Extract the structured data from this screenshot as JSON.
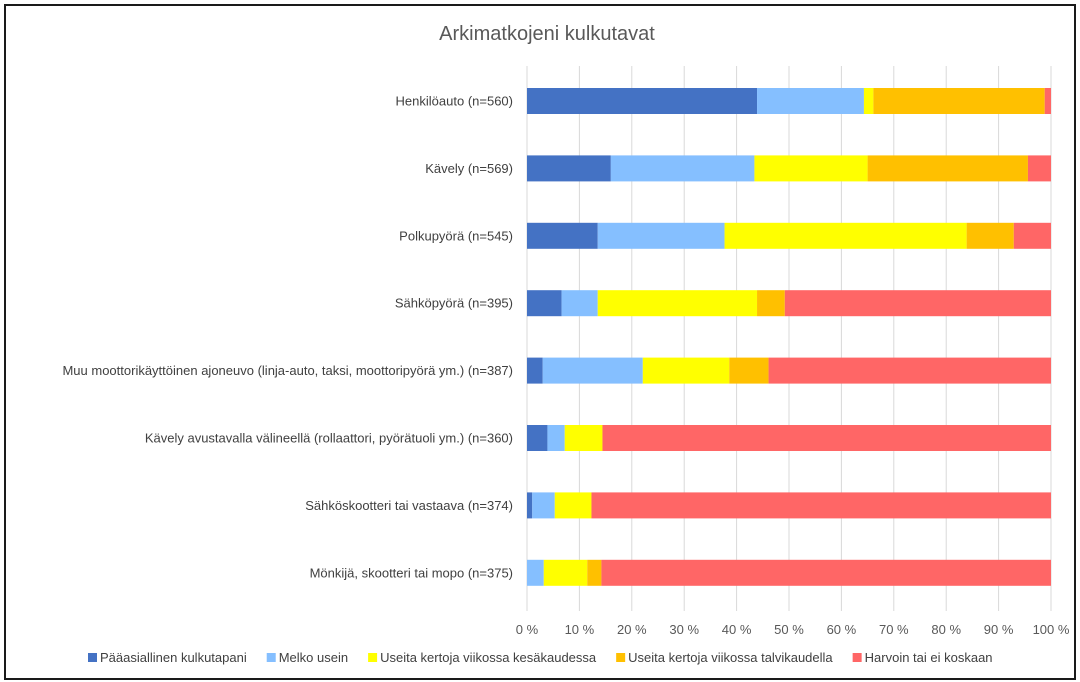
{
  "chart_data": {
    "type": "bar",
    "orientation": "horizontal",
    "stacked": true,
    "title": "Arkimatkojeni kulkutavat",
    "xlabel": "",
    "ylabel": "",
    "xlim": [
      0,
      100
    ],
    "x_ticks": [
      "0 %",
      "10 %",
      "20 %",
      "30 %",
      "40 %",
      "50 %",
      "60 %",
      "70 %",
      "80 %",
      "90 %",
      "100 %"
    ],
    "grid": true,
    "legend_position": "bottom",
    "categories": [
      "Henkilöauto (n=560)",
      "Kävely (n=569)",
      "Polkupyörä (n=545)",
      "Sähköpyörä (n=395)",
      "Muu moottorikäyttöinen ajoneuvo (linja-auto, taksi, moottoripyörä ym.) (n=387)",
      "Kävely avustavalla välineellä (rollaattori, pyörätuoli ym.) (n=360)",
      "Sähköskootteri tai vastaava (n=374)",
      "Mönkijä, skootteri tai mopo (n=375)"
    ],
    "series": [
      {
        "name": "Pääasiallinen kulkutapani",
        "color": "#4472C4",
        "values": [
          43.9,
          16.0,
          13.5,
          6.6,
          3.0,
          3.9,
          1.0,
          0.0
        ]
      },
      {
        "name": "Melko usein",
        "color": "#85BFFF",
        "values": [
          20.4,
          27.4,
          24.2,
          6.9,
          19.1,
          3.3,
          4.3,
          3.2
        ]
      },
      {
        "name": "Useita kertoja viikossa kesäkaudessa",
        "color": "#FFFF00",
        "values": [
          1.8,
          21.6,
          46.2,
          30.4,
          16.5,
          7.2,
          7.0,
          8.3
        ]
      },
      {
        "name": "Useita kertoja viikossa talvikaudella",
        "color": "#FFC000",
        "values": [
          32.7,
          30.6,
          9.0,
          5.3,
          7.5,
          0.0,
          0.0,
          2.7
        ]
      },
      {
        "name": "Harvoin tai ei koskaan",
        "color": "#FF6666",
        "values": [
          1.2,
          4.4,
          7.1,
          50.8,
          53.9,
          85.6,
          87.7,
          85.8
        ]
      }
    ]
  }
}
